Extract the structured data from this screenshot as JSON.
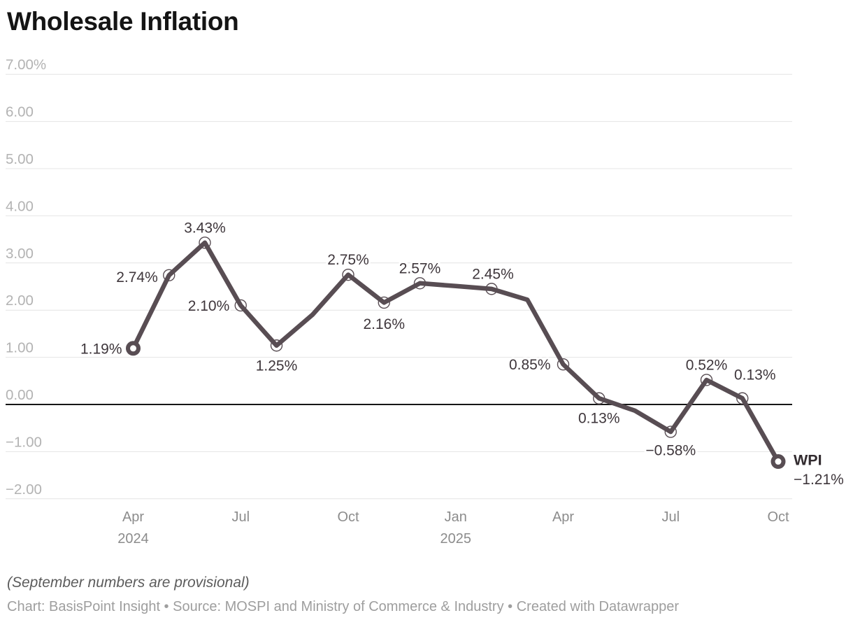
{
  "title": "Wholesale Inflation",
  "colors": {
    "line": "#584d53",
    "label": "#3e363b",
    "title": "#141414",
    "axis_text": "#b3b3b3",
    "x_axis_text": "#8c8c8c",
    "grid": "#e4e4e4",
    "zero_line": "#161616",
    "background": "#ffffff"
  },
  "chart_data": {
    "type": "line",
    "title": "Wholesale Inflation",
    "unit": "%",
    "ylim": [
      -2,
      7
    ],
    "grid": "horizontal-only",
    "legend": "none",
    "x": [
      "Apr 2024",
      "May 2024",
      "Jun 2024",
      "Jul 2024",
      "Aug 2024",
      "Sep 2024",
      "Oct 2024",
      "Nov 2024",
      "Dec 2024",
      "Jan 2025",
      "Feb 2025",
      "Mar 2025",
      "Apr 2025",
      "May 2025",
      "Jun 2025",
      "Jul 2025",
      "Aug 2025",
      "Sep 2025",
      "Oct 2025"
    ],
    "series": [
      {
        "name": "WPI",
        "values": [
          1.19,
          2.74,
          3.43,
          2.1,
          1.25,
          1.9,
          2.75,
          2.16,
          2.57,
          2.51,
          2.45,
          2.22,
          0.85,
          0.13,
          -0.13,
          -0.58,
          0.52,
          0.13,
          -1.21
        ]
      }
    ],
    "unlabeled_estimated_indices": [
      5,
      9,
      11,
      14
    ],
    "y_ticks": [
      {
        "value": 7,
        "label": "7.00%"
      },
      {
        "value": 6,
        "label": "6.00"
      },
      {
        "value": 5,
        "label": "5.00"
      },
      {
        "value": 4,
        "label": "4.00"
      },
      {
        "value": 3,
        "label": "3.00"
      },
      {
        "value": 2,
        "label": "2.00"
      },
      {
        "value": 1,
        "label": "1.00"
      },
      {
        "value": 0,
        "label": "0.00"
      },
      {
        "value": -1,
        "label": "−1.00"
      },
      {
        "value": -2,
        "label": "−2.00"
      }
    ],
    "x_ticks": [
      {
        "index": 0,
        "label": "Apr",
        "sublabel": "2024"
      },
      {
        "index": 3,
        "label": "Jul"
      },
      {
        "index": 6,
        "label": "Oct"
      },
      {
        "index": 9,
        "label": "Jan",
        "sublabel": "2025"
      },
      {
        "index": 12,
        "label": "Apr"
      },
      {
        "index": 15,
        "label": "Jul"
      },
      {
        "index": 18,
        "label": "Oct"
      }
    ],
    "point_labels": [
      {
        "index": 0,
        "text": "1.19%",
        "pos": "left"
      },
      {
        "index": 1,
        "text": "2.74%",
        "pos": "left",
        "dy": 3
      },
      {
        "index": 2,
        "text": "3.43%",
        "pos": "above"
      },
      {
        "index": 3,
        "text": "2.10%",
        "pos": "left"
      },
      {
        "index": 4,
        "text": "1.25%",
        "pos": "below"
      },
      {
        "index": 6,
        "text": "2.75%",
        "pos": "above"
      },
      {
        "index": 7,
        "text": "2.16%",
        "pos": "below",
        "dy": 31
      },
      {
        "index": 8,
        "text": "2.57%",
        "pos": "above"
      },
      {
        "index": 10,
        "text": "2.45%",
        "pos": "above",
        "dx": 2
      },
      {
        "index": 12,
        "text": "0.85%",
        "pos": "left",
        "dx": -18
      },
      {
        "index": 13,
        "text": "0.13%",
        "pos": "below"
      },
      {
        "index": 15,
        "text": "−0.58%",
        "pos": "below",
        "dy": 27
      },
      {
        "index": 16,
        "text": "0.52%",
        "pos": "above"
      },
      {
        "index": 17,
        "text": "0.13%",
        "pos": "above-right"
      }
    ],
    "annotations": {
      "end_series_label": "WPI",
      "end_value_label": "−1.21%"
    }
  },
  "footer": {
    "note": "(September numbers are provisional)",
    "credit": "Chart: BasisPoint Insight • Source: MOSPI and Ministry of Commerce & Industry • Created with Datawrapper"
  }
}
